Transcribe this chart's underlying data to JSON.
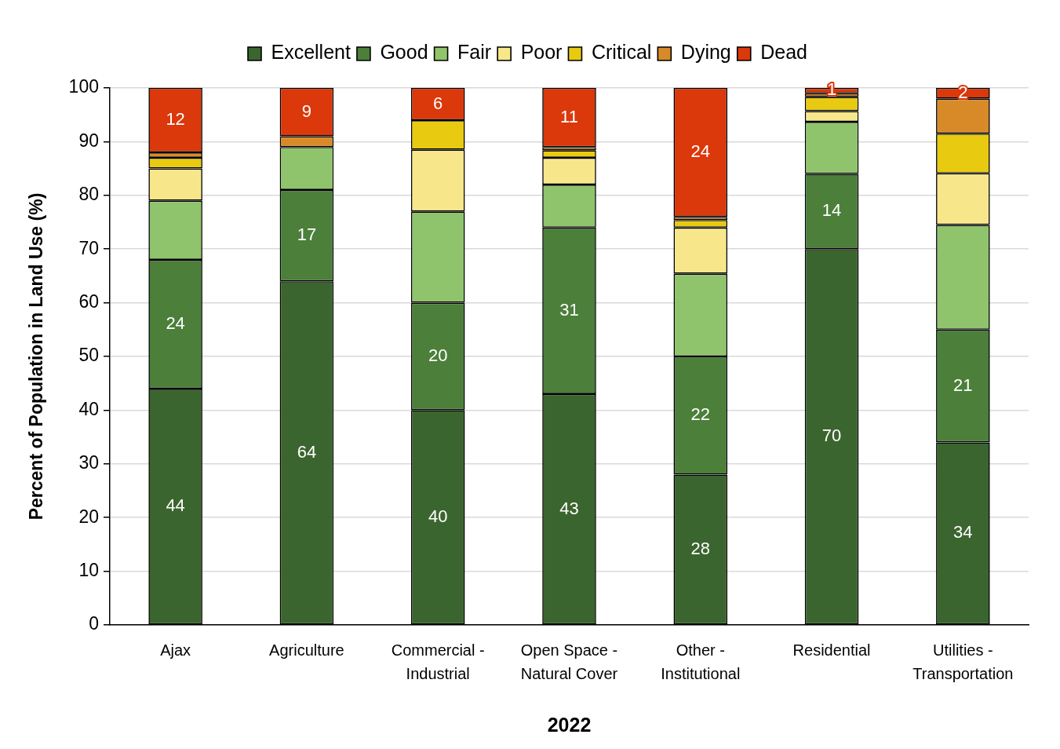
{
  "chart_data": {
    "type": "bar",
    "stacked": true,
    "legend": "top",
    "grid": "y",
    "ylabel": "Percent of Population in Land Use (%)",
    "xlabel": "2022",
    "categories": [
      "Ajax",
      "Agriculture",
      "Commercial - Industrial",
      "Open Space - Natural Cover",
      "Other - Institutional",
      "Residential",
      "Utilities - Transportation"
    ],
    "ylim": [
      0,
      100
    ],
    "yticks": [
      0,
      10,
      20,
      30,
      40,
      50,
      60,
      70,
      80,
      90,
      100
    ],
    "series": [
      {
        "name": "Excellent",
        "color": "#3b652e",
        "values": [
          44,
          64,
          40,
          43,
          28,
          70,
          34
        ],
        "value_labels": [
          "44",
          "64",
          "40",
          "43",
          "28",
          "70",
          "34"
        ]
      },
      {
        "name": "Good",
        "color": "#4b7f3a",
        "values": [
          24,
          17,
          20,
          31,
          22,
          14,
          21
        ],
        "value_labels": [
          "24",
          "17",
          "20",
          "31",
          "22",
          "14",
          "21"
        ]
      },
      {
        "name": "Fair",
        "color": "#8fc46c",
        "values": [
          11,
          8,
          17,
          8,
          15.4,
          9.7,
          19.5
        ]
      },
      {
        "name": "Poor",
        "color": "#f8e78a",
        "values": [
          6,
          0,
          11.5,
          5,
          8.6,
          2,
          9.6
        ]
      },
      {
        "name": "Critical",
        "color": "#e8ca10",
        "values": [
          2,
          0,
          5.5,
          1.4,
          1.4,
          2.6,
          7.4
        ]
      },
      {
        "name": "Dying",
        "color": "#d98a28",
        "values": [
          1,
          2,
          0,
          0.6,
          0.6,
          0.7,
          6.5
        ]
      },
      {
        "name": "Dead",
        "color": "#db380b",
        "values": [
          12,
          9,
          6,
          11,
          24,
          1,
          2
        ],
        "value_labels": [
          "12",
          "9",
          "6",
          "11",
          "24",
          "1",
          "2"
        ]
      }
    ]
  }
}
